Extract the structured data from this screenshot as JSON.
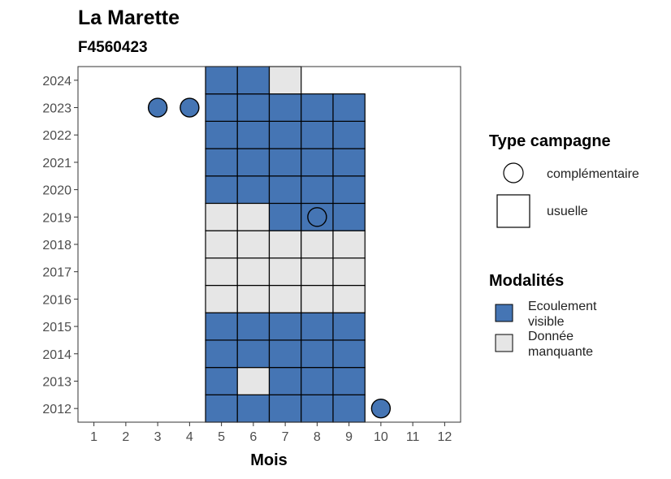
{
  "chart_data": {
    "type": "heatmap",
    "title": "La Marette",
    "subtitle": "F4560423",
    "xlabel": "Mois",
    "ylabel": "",
    "x_ticks": [
      1,
      2,
      3,
      4,
      5,
      6,
      7,
      8,
      9,
      10,
      11,
      12
    ],
    "y_ticks": [
      2012,
      2013,
      2014,
      2015,
      2016,
      2017,
      2018,
      2019,
      2020,
      2021,
      2022,
      2023,
      2024
    ],
    "xlim": [
      0.5,
      12.5
    ],
    "ylim": [
      2011.5,
      2024.5
    ],
    "colors": {
      "ecoulement_visible": "#4575b4",
      "donnee_manquante": "#e6e6e6",
      "outline": "#000000"
    },
    "usuelle": [
      {
        "year": 2012,
        "values": {
          "5": "ev",
          "6": "ev",
          "7": "ev",
          "8": "ev",
          "9": "ev"
        }
      },
      {
        "year": 2013,
        "values": {
          "5": "ev",
          "6": "dm",
          "7": "ev",
          "8": "ev",
          "9": "ev"
        }
      },
      {
        "year": 2014,
        "values": {
          "5": "ev",
          "6": "ev",
          "7": "ev",
          "8": "ev",
          "9": "ev"
        }
      },
      {
        "year": 2015,
        "values": {
          "5": "ev",
          "6": "ev",
          "7": "ev",
          "8": "ev",
          "9": "ev"
        }
      },
      {
        "year": 2016,
        "values": {
          "5": "dm",
          "6": "dm",
          "7": "dm",
          "8": "dm",
          "9": "dm"
        }
      },
      {
        "year": 2017,
        "values": {
          "5": "dm",
          "6": "dm",
          "7": "dm",
          "8": "dm",
          "9": "dm"
        }
      },
      {
        "year": 2018,
        "values": {
          "5": "dm",
          "6": "dm",
          "7": "dm",
          "8": "dm",
          "9": "dm"
        }
      },
      {
        "year": 2019,
        "values": {
          "5": "dm",
          "6": "dm",
          "7": "ev",
          "8": "ev",
          "9": "ev"
        }
      },
      {
        "year": 2020,
        "values": {
          "5": "ev",
          "6": "ev",
          "7": "ev",
          "8": "ev",
          "9": "ev"
        }
      },
      {
        "year": 2021,
        "values": {
          "5": "ev",
          "6": "ev",
          "7": "ev",
          "8": "ev",
          "9": "ev"
        }
      },
      {
        "year": 2022,
        "values": {
          "5": "ev",
          "6": "ev",
          "7": "ev",
          "8": "ev",
          "9": "ev"
        }
      },
      {
        "year": 2023,
        "values": {
          "5": "ev",
          "6": "ev",
          "7": "ev",
          "8": "ev",
          "9": "ev"
        }
      },
      {
        "year": 2024,
        "values": {
          "5": "ev",
          "6": "ev",
          "7": "dm"
        }
      }
    ],
    "complementaire": [
      {
        "year": 2023,
        "month": 3,
        "value": "ev"
      },
      {
        "year": 2023,
        "month": 4,
        "value": "ev"
      },
      {
        "year": 2019,
        "month": 8,
        "value": "ev"
      },
      {
        "year": 2012,
        "month": 10,
        "value": "ev"
      }
    ],
    "legend": {
      "placement": "right",
      "type_campagne": {
        "title": "Type campagne",
        "items": [
          "complémentaire",
          "usuelle"
        ]
      },
      "modalites": {
        "title": "Modalités",
        "items": [
          {
            "key": "ev",
            "label_lines": [
              "Ecoulement",
              "visible"
            ]
          },
          {
            "key": "dm",
            "label_lines": [
              "Donnée",
              "manquante"
            ]
          }
        ]
      }
    }
  }
}
